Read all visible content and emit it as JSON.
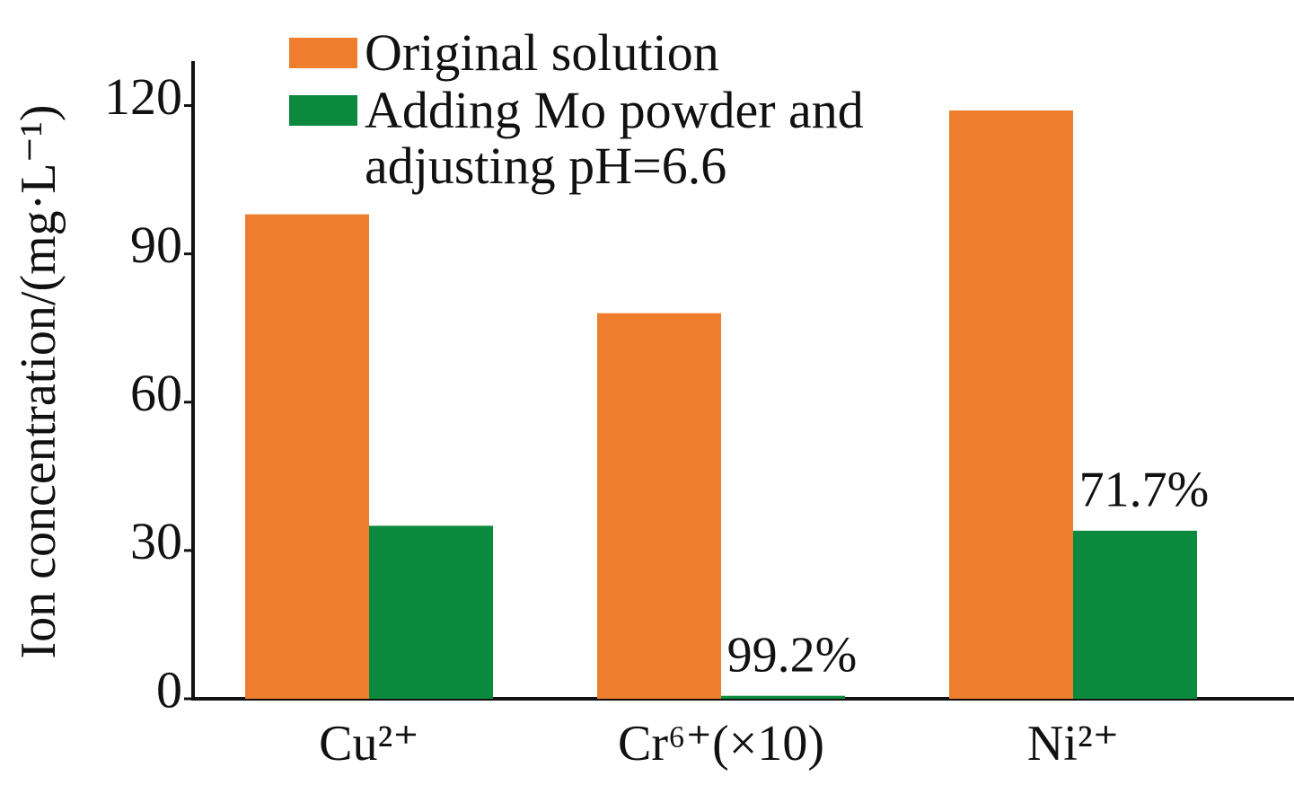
{
  "chart_data": {
    "type": "bar",
    "y_label": "Ion concentration/(mg·L⁻¹)",
    "categories": [
      "Cu²⁺",
      "Cr⁶⁺(×10)",
      "Ni²⁺"
    ],
    "series": [
      {
        "name": "Original solution",
        "color": "#ee7d2e",
        "values": [
          98,
          78,
          119
        ]
      },
      {
        "name": "Adding Mo powder and adjusting pH=6.6",
        "color": "#0b8a3d",
        "values": [
          35,
          0.6,
          34
        ]
      }
    ],
    "removal_labels": [
      null,
      "99.2%",
      "71.7%"
    ],
    "ylim": [
      0,
      129
    ],
    "yticks": [
      0,
      30,
      60,
      90,
      120
    ],
    "legend": "upper left"
  }
}
